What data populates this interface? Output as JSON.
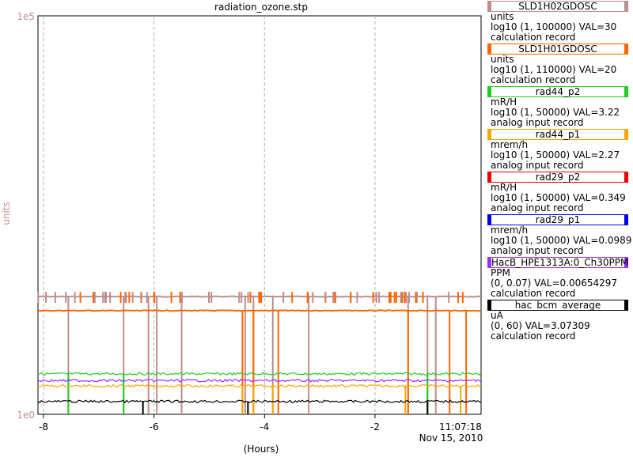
{
  "chart_data": {
    "type": "line",
    "title": "radiation_ozone.stp",
    "xlabel": "(Hours)",
    "ylabel": "units",
    "y_scale": "log",
    "ylim": [
      1,
      100000
    ],
    "y_tick_labels": [
      "1e5",
      "1e0"
    ],
    "xlim": [
      -8.1,
      -0.08
    ],
    "x_ticks": [
      -8,
      -6,
      -4,
      -2
    ],
    "x_tick_labels": [
      "-8",
      "-6",
      "-4",
      "-2"
    ],
    "end_time": "11:07:18",
    "end_date": "Nov 15, 2010",
    "grid": true,
    "series": [
      {
        "name": "SLD1H02GDOSC",
        "color": "#bc8f8f",
        "level": 30,
        "dips": [
          -7.55,
          -6.55,
          -6.1,
          -5.95,
          -5.5,
          -4.35,
          -4.2,
          -3.85,
          -3.2,
          -1.4,
          -1.05,
          -0.9
        ]
      },
      {
        "name": "SLD1H01GDOSC",
        "color": "#ff6600",
        "level": 20,
        "dips": [
          -4.4,
          -4.2,
          -3.75,
          -1.4,
          -0.65,
          -0.35
        ]
      },
      {
        "name": "rad44_p2",
        "color": "#22cc22",
        "level": 3.22,
        "dips": [
          -7.55,
          -6.55,
          -1.05
        ]
      },
      {
        "name": "rad44_p1",
        "color": "#ffa500",
        "level": 2.27,
        "dips": [
          -4.4,
          -4.2,
          -3.85,
          -1.45,
          -0.45
        ]
      },
      {
        "name": "rad29_p2",
        "color": "#ee0000",
        "level": 0.349,
        "dips": []
      },
      {
        "name": "rad29_p1",
        "color": "#0000ee",
        "level": 0.0989,
        "dips": []
      },
      {
        "name": "HacB_HPE1313A:0_Ch30PPM",
        "color": "#9933ff",
        "level": 2.65,
        "dips": []
      },
      {
        "name": "hac_bcm_average",
        "color": "#000000",
        "level": 1.45,
        "dips": [
          -6.2,
          -4.3,
          -1.05
        ]
      }
    ]
  },
  "legend": [
    {
      "name": "SLD1H02GDOSC",
      "color": "#bc8f8f",
      "units": "units",
      "range": "log10 (1, 100000) VAL=30",
      "record": "calculation record"
    },
    {
      "name": "SLD1H01GDOSC",
      "color": "#ff6600",
      "units": "units",
      "range": "log10 (1, 110000) VAL=20",
      "record": "calculation record"
    },
    {
      "name": "rad44_p2",
      "color": "#22cc22",
      "units": "mR/H",
      "range": "log10 (1, 50000) VAL=3.22",
      "record": "analog input record"
    },
    {
      "name": "rad44_p1",
      "color": "#ffa500",
      "units": "mrem/h",
      "range": "log10 (1, 50000) VAL=2.27",
      "record": "analog input record"
    },
    {
      "name": "rad29_p2",
      "color": "#ee0000",
      "units": "mR/H",
      "range": "log10 (1, 50000) VAL=0.349",
      "record": "analog input record"
    },
    {
      "name": "rad29_p1",
      "color": "#0000ee",
      "units": "mrem/h",
      "range": "log10 (1, 50000) VAL=0.0989",
      "record": "analog input record"
    },
    {
      "name": "HacB_HPE1313A:0_Ch30PPM",
      "color": "#9933ff",
      "units": "PPM",
      "range": "(0, 0.07) VAL=0.00654297",
      "record": "calculation record"
    },
    {
      "name": "hac_bcm_average",
      "color": "#000000",
      "units": "uA",
      "range": "(0, 60) VAL=3.07309",
      "record": "calculation record"
    }
  ]
}
